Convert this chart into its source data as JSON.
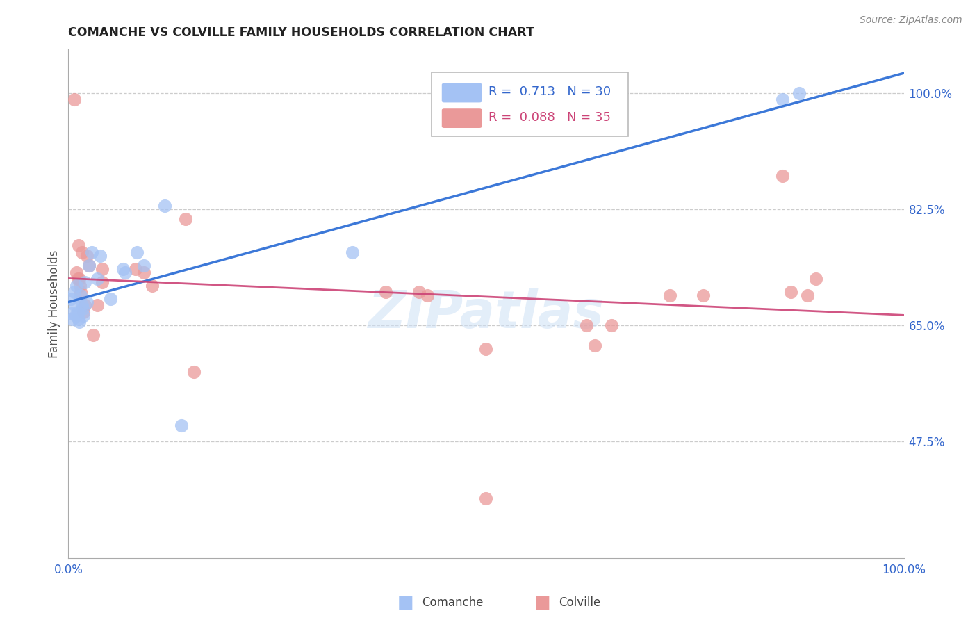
{
  "title": "COMANCHE VS COLVILLE FAMILY HOUSEHOLDS CORRELATION CHART",
  "source": "Source: ZipAtlas.com",
  "ylabel": "Family Households",
  "comanche_color": "#a4c2f4",
  "colville_color": "#ea9999",
  "comanche_line_color": "#3c78d8",
  "colville_line_color": "#cc4477",
  "legend_r_comanche": "0.713",
  "legend_n_comanche": "30",
  "legend_r_colville": "0.088",
  "legend_n_colville": "35",
  "ytick_vals": [
    0.475,
    0.65,
    0.825,
    1.0
  ],
  "ytick_labels": [
    "47.5%",
    "65.0%",
    "82.5%",
    "100.0%"
  ],
  "xmin": 0.0,
  "xmax": 1.0,
  "ymin": 0.3,
  "ymax": 1.065,
  "comanche_x": [
    0.003,
    0.004,
    0.005,
    0.007,
    0.008,
    0.009,
    0.01,
    0.011,
    0.012,
    0.013,
    0.015,
    0.016,
    0.017,
    0.018,
    0.02,
    0.022,
    0.025,
    0.028,
    0.035,
    0.038,
    0.05,
    0.065,
    0.068,
    0.082,
    0.09,
    0.115,
    0.135,
    0.34,
    0.855,
    0.875
  ],
  "comanche_y": [
    0.69,
    0.668,
    0.66,
    0.7,
    0.68,
    0.665,
    0.71,
    0.67,
    0.66,
    0.655,
    0.695,
    0.68,
    0.675,
    0.665,
    0.715,
    0.685,
    0.74,
    0.76,
    0.72,
    0.755,
    0.69,
    0.735,
    0.73,
    0.76,
    0.74,
    0.83,
    0.5,
    0.76,
    0.99,
    1.0
  ],
  "colville_x": [
    0.007,
    0.01,
    0.011,
    0.012,
    0.013,
    0.014,
    0.015,
    0.016,
    0.018,
    0.02,
    0.022,
    0.025,
    0.03,
    0.035,
    0.04,
    0.04,
    0.08,
    0.09,
    0.1,
    0.14,
    0.15,
    0.38,
    0.42,
    0.43,
    0.62,
    0.63,
    0.65,
    0.72,
    0.76,
    0.855,
    0.865,
    0.885,
    0.895,
    0.5,
    0.5
  ],
  "colville_y": [
    0.99,
    0.73,
    0.72,
    0.77,
    0.72,
    0.71,
    0.7,
    0.76,
    0.67,
    0.68,
    0.755,
    0.74,
    0.635,
    0.68,
    0.735,
    0.715,
    0.735,
    0.73,
    0.71,
    0.81,
    0.58,
    0.7,
    0.7,
    0.695,
    0.65,
    0.62,
    0.65,
    0.695,
    0.695,
    0.875,
    0.7,
    0.695,
    0.72,
    0.39,
    0.615
  ],
  "watermark": "ZIPatlas"
}
